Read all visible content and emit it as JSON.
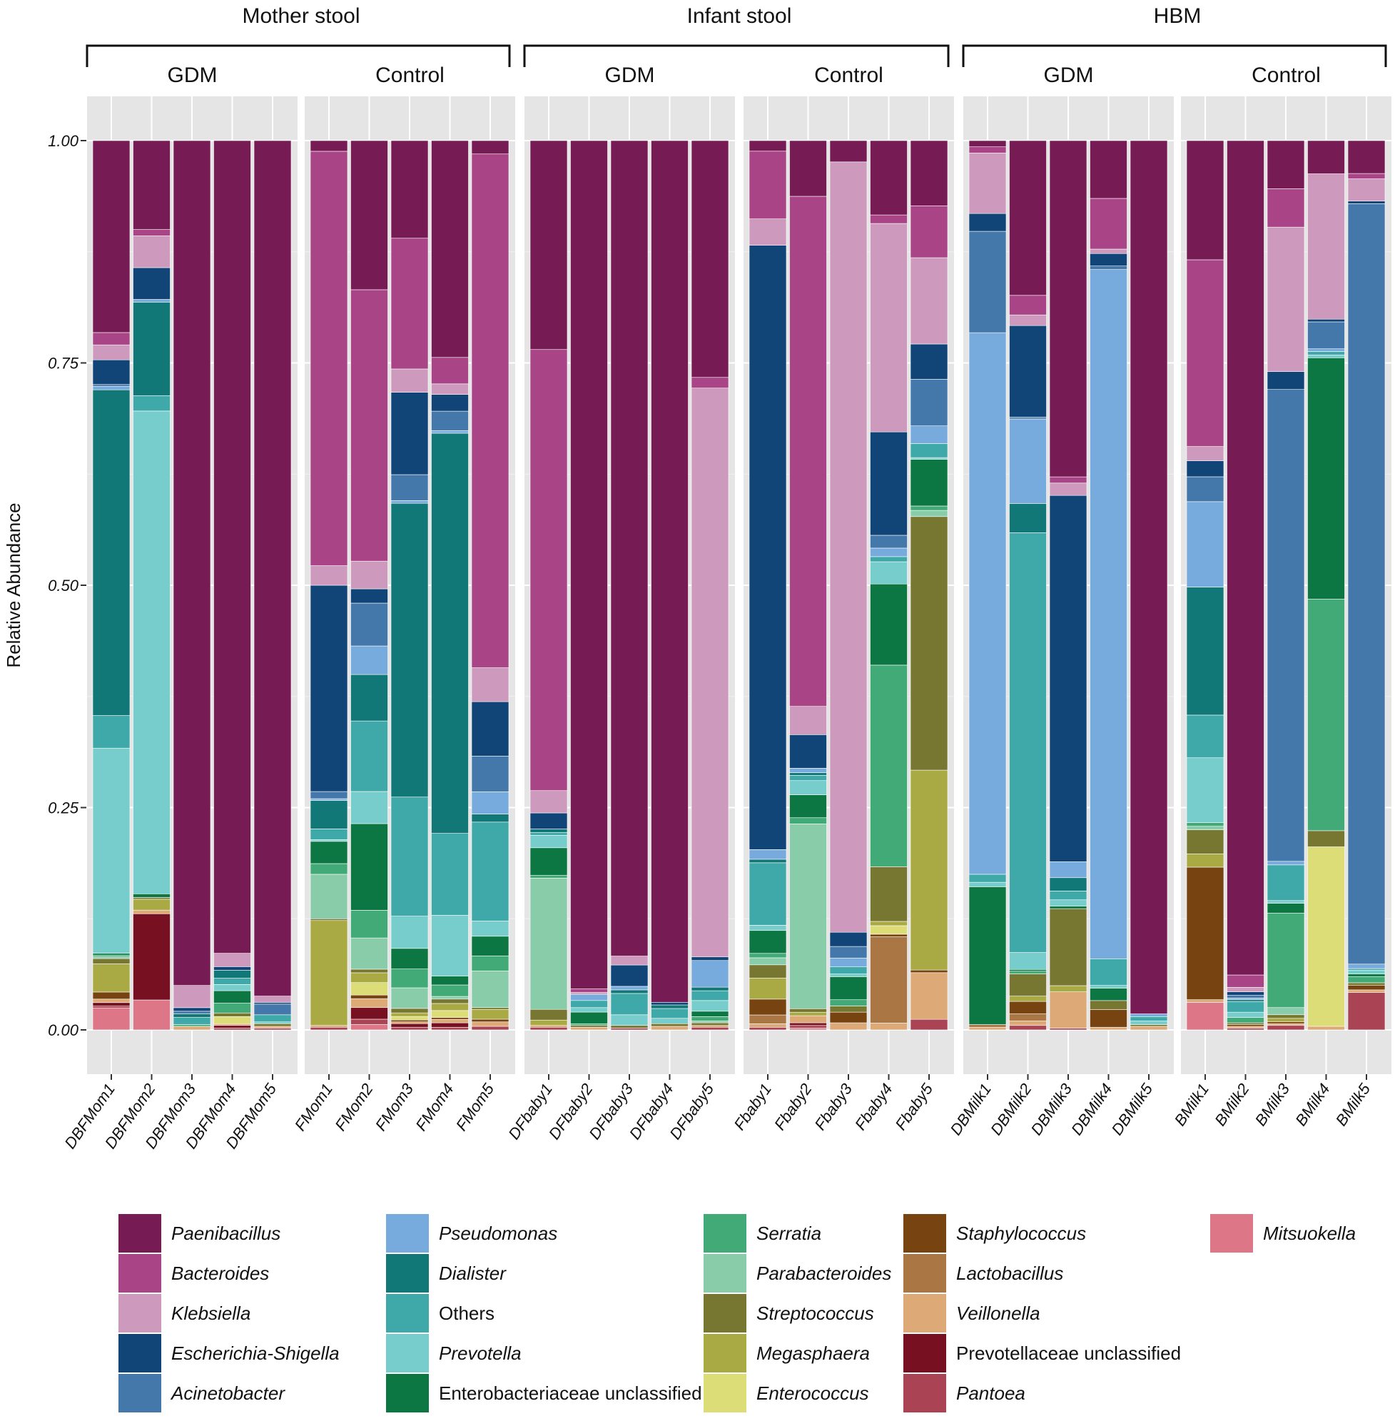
{
  "chart_data": {
    "type": "bar",
    "stacked": true,
    "ylabel": "Relative Abundance",
    "ylim": [
      0,
      1
    ],
    "yticks": [
      "0.00",
      "0.25",
      "0.50",
      "0.75",
      "1.00"
    ],
    "ytick_values": [
      0,
      0.25,
      0.5,
      0.75,
      1.0
    ],
    "grid": true,
    "legend_position": "bottom",
    "groups": [
      {
        "title": "Mother stool",
        "subgroups": [
          {
            "title": "GDM",
            "samples": [
              "DBFMom1",
              "DBFMom2",
              "DBFMom3",
              "DBFMom4",
              "DBFMom5"
            ]
          },
          {
            "title": "Control",
            "samples": [
              "FMom1",
              "FMom2",
              "FMom3",
              "FMom4",
              "FMom5"
            ]
          }
        ]
      },
      {
        "title": "Infant stool",
        "subgroups": [
          {
            "title": "GDM",
            "samples": [
              "DFbaby1",
              "DFbaby2",
              "DFbaby3",
              "DFbaby4",
              "DFbaby5"
            ]
          },
          {
            "title": "Control",
            "samples": [
              "Fbaby1",
              "Fbaby2",
              "Fbaby3",
              "Fbaby4",
              "Fbaby5"
            ]
          }
        ]
      },
      {
        "title": "HBM",
        "subgroups": [
          {
            "title": "GDM",
            "samples": [
              "DBMilk1",
              "DBMilk2",
              "DBMilk3",
              "DBMilk4",
              "DBMilk5"
            ]
          },
          {
            "title": "Control",
            "samples": [
              "BMilk1",
              "BMilk2",
              "BMilk3",
              "BMilk4",
              "BMilk5"
            ]
          }
        ]
      }
    ],
    "taxa": [
      {
        "name": "Paenibacillus",
        "color": "#771b55",
        "italic": true
      },
      {
        "name": "Bacteroides",
        "color": "#a94487",
        "italic": true
      },
      {
        "name": "Klebsiella",
        "color": "#cd99bd",
        "italic": true
      },
      {
        "name": "Escherichia-Shigella",
        "color": "#114477",
        "italic": true
      },
      {
        "name": "Acinetobacter",
        "color": "#4477aa",
        "italic": true
      },
      {
        "name": "Pseudomonas",
        "color": "#77aadd",
        "italic": true
      },
      {
        "name": "Dialister",
        "color": "#117777",
        "italic": true
      },
      {
        "name": "Others",
        "color": "#3fa9a9",
        "italic": false
      },
      {
        "name": "Prevotella",
        "color": "#77cccc",
        "italic": true
      },
      {
        "name": "Enterobacteriaceae unclassified",
        "color": "#0d7744",
        "italic": false
      },
      {
        "name": "Serratia",
        "color": "#41aa77",
        "italic": true
      },
      {
        "name": "Parabacteroides",
        "color": "#88ccaa",
        "italic": true
      },
      {
        "name": "Streptococcus",
        "color": "#777732",
        "italic": true
      },
      {
        "name": "Megasphaera",
        "color": "#aaaa44",
        "italic": true
      },
      {
        "name": "Enterococcus",
        "color": "#dddd77",
        "italic": true
      },
      {
        "name": "Staphylococcus",
        "color": "#774411",
        "italic": true
      },
      {
        "name": "Lactobacillus",
        "color": "#aa7744",
        "italic": true
      },
      {
        "name": "Veillonella",
        "color": "#ddaa77",
        "italic": true
      },
      {
        "name": "Prevotellaceae unclassified",
        "color": "#771122",
        "italic": false
      },
      {
        "name": "Pantoea",
        "color": "#aa4455",
        "italic": true
      },
      {
        "name": "Mitsuokella",
        "color": "#dd7788",
        "italic": true
      }
    ],
    "series_note": "Each sample vector lists abundances in taxa order (Paenibacillus ... Mitsuokella); stacked top-to-bottom in that order.",
    "samples": {
      "DBFMom1": [
        0.218,
        0.014,
        0.017,
        0.028,
        0.002,
        0.004,
        0.37,
        0.037,
        0.233,
        0.002,
        0.002,
        0.002,
        0.006,
        0.032,
        0.0,
        0.008,
        0.0,
        0.004,
        0.004,
        0.002,
        0.025
      ],
      "DBFMom2": [
        0.098,
        0.007,
        0.035,
        0.035,
        0.0,
        0.003,
        0.103,
        0.017,
        0.532,
        0.004,
        0.0,
        0.0,
        0.002,
        0.012,
        0.0,
        0.0,
        0.0,
        0.004,
        0.095,
        0.0,
        0.033
      ],
      "DBFMom3": [
        0.95,
        0.0,
        0.025,
        0.004,
        0.003,
        0.0,
        0.004,
        0.008,
        0.0,
        0.0,
        0.002,
        0.0,
        0.0,
        0.0,
        0.0,
        0.0,
        0.0,
        0.004,
        0.0,
        0.0,
        0.0
      ],
      "DBFMom4": [
        0.912,
        0.0,
        0.015,
        0.004,
        0.0,
        0.0,
        0.009,
        0.007,
        0.007,
        0.014,
        0.011,
        0.0,
        0.004,
        0.0,
        0.008,
        0.0,
        0.0,
        0.002,
        0.003,
        0.002,
        0.0
      ],
      "DBFMom5": [
        0.962,
        0.0,
        0.007,
        0.002,
        0.012,
        0.0,
        0.0,
        0.008,
        0.002,
        0.0,
        0.0,
        0.0,
        0.003,
        0.0,
        0.0,
        0.0,
        0.0,
        0.002,
        0.0,
        0.002,
        0.0
      ],
      "FMom1": [
        0.012,
        0.466,
        0.022,
        0.232,
        0.008,
        0.002,
        0.032,
        0.012,
        0.002,
        0.025,
        0.012,
        0.05,
        0.002,
        0.118,
        0.0,
        0.0,
        0.0,
        0.002,
        0.0,
        0.003,
        0.0
      ],
      "FMom2": [
        0.167,
        0.304,
        0.031,
        0.016,
        0.048,
        0.032,
        0.052,
        0.079,
        0.036,
        0.097,
        0.031,
        0.035,
        0.004,
        0.011,
        0.014,
        0.004,
        0.0,
        0.01,
        0.013,
        0.006,
        0.006
      ],
      "FMom3": [
        0.109,
        0.146,
        0.026,
        0.092,
        0.029,
        0.003,
        0.328,
        0.133,
        0.036,
        0.023,
        0.021,
        0.023,
        0.005,
        0.004,
        0.004,
        0.002,
        0.0,
        0.002,
        0.004,
        0.003,
        0.0
      ],
      "FMom4": [
        0.246,
        0.03,
        0.012,
        0.019,
        0.022,
        0.003,
        0.454,
        0.093,
        0.069,
        0.01,
        0.013,
        0.003,
        0.005,
        0.008,
        0.008,
        0.002,
        0.0,
        0.004,
        0.005,
        0.003,
        0.0
      ],
      "FMom5": [
        0.015,
        0.576,
        0.038,
        0.061,
        0.04,
        0.025,
        0.009,
        0.111,
        0.017,
        0.022,
        0.017,
        0.041,
        0.002,
        0.011,
        0.0,
        0.003,
        0.0,
        0.005,
        0.0,
        0.004,
        0.0
      ],
      "DFbaby1": [
        0.234,
        0.494,
        0.025,
        0.018,
        0.0,
        0.0,
        0.004,
        0.003,
        0.014,
        0.031,
        0.003,
        0.147,
        0.012,
        0.006,
        0.0,
        0.0,
        0.0,
        0.002,
        0.0,
        0.003,
        0.0
      ],
      "DFbaby2": [
        0.952,
        0.004,
        0.002,
        0.0,
        0.0,
        0.007,
        0.0,
        0.008,
        0.005,
        0.013,
        0.002,
        0.0,
        0.002,
        0.0,
        0.0,
        0.0,
        0.0,
        0.003,
        0.0,
        0.0,
        0.0
      ],
      "DFbaby3": [
        0.917,
        0.0,
        0.01,
        0.024,
        0.0,
        0.004,
        0.004,
        0.024,
        0.012,
        0.0,
        0.0,
        0.0,
        0.003,
        0.0,
        0.0,
        0.0,
        0.0,
        0.0,
        0.0,
        0.002,
        0.0
      ],
      "DFbaby4": [
        0.967,
        0.0,
        0.0,
        0.003,
        0.0,
        0.0,
        0.004,
        0.011,
        0.006,
        0.0,
        0.0,
        0.0,
        0.003,
        0.0,
        0.0,
        0.0,
        0.0,
        0.004,
        0.0,
        0.0,
        0.0
      ],
      "DFbaby5": [
        0.266,
        0.012,
        0.639,
        0.004,
        0.0,
        0.03,
        0.004,
        0.011,
        0.012,
        0.006,
        0.005,
        0.002,
        0.003,
        0.0,
        0.0,
        0.0,
        0.0,
        0.002,
        0.0,
        0.003,
        0.0
      ],
      "Fbaby1": [
        0.012,
        0.077,
        0.03,
        0.687,
        0.0,
        0.011,
        0.004,
        0.071,
        0.006,
        0.026,
        0.005,
        0.008,
        0.015,
        0.024,
        0.0,
        0.018,
        0.01,
        0.004,
        0.0,
        0.003,
        0.0
      ],
      "Fbaby2": [
        0.063,
        0.577,
        0.032,
        0.038,
        0.0,
        0.005,
        0.003,
        0.006,
        0.016,
        0.026,
        0.007,
        0.209,
        0.004,
        0.004,
        0.0,
        0.0,
        0.0,
        0.008,
        0.003,
        0.003,
        0.002
      ],
      "Fbaby3": [
        0.024,
        0.0,
        0.868,
        0.016,
        0.013,
        0.01,
        0.0,
        0.008,
        0.003,
        0.026,
        0.007,
        0.0,
        0.007,
        0.0,
        0.0,
        0.012,
        0.0,
        0.008,
        0.0,
        0.0,
        0.0
      ],
      "Fbaby4": [
        0.087,
        0.01,
        0.244,
        0.121,
        0.015,
        0.01,
        0.0,
        0.006,
        0.026,
        0.095,
        0.236,
        0.0,
        0.064,
        0.005,
        0.01,
        0.003,
        0.101,
        0.008,
        0.0,
        0.0,
        0.0
      ],
      "Fbaby5": [
        0.074,
        0.059,
        0.098,
        0.04,
        0.053,
        0.02,
        0.0,
        0.016,
        0.002,
        0.053,
        0.005,
        0.007,
        0.288,
        0.227,
        0.0,
        0.003,
        0.0,
        0.053,
        0.0,
        0.012,
        0.0
      ],
      "DBMilk1": [
        0.007,
        0.007,
        0.068,
        0.02,
        0.114,
        0.609,
        0.0,
        0.009,
        0.005,
        0.155,
        0.0,
        0.0,
        0.0,
        0.0,
        0.0,
        0.0,
        0.003,
        0.003,
        0.0,
        0.0,
        0.0
      ],
      "DBMilk2": [
        0.174,
        0.022,
        0.012,
        0.103,
        0.002,
        0.095,
        0.033,
        0.472,
        0.019,
        0.002,
        0.003,
        0.0,
        0.025,
        0.006,
        0.0,
        0.014,
        0.008,
        0.005,
        0.0,
        0.005,
        0.0
      ],
      "DBMilk3": [
        0.38,
        0.007,
        0.014,
        0.414,
        0.0,
        0.018,
        0.015,
        0.01,
        0.007,
        0.003,
        0.0,
        0.0,
        0.087,
        0.007,
        0.0,
        0.0,
        0.0,
        0.041,
        0.0,
        0.002,
        0.0
      ],
      "DBMilk4": [
        0.065,
        0.057,
        0.005,
        0.014,
        0.004,
        0.775,
        0.0,
        0.03,
        0.003,
        0.014,
        0.0,
        0.0,
        0.01,
        0.0,
        0.0,
        0.02,
        0.0,
        0.003,
        0.0,
        0.0,
        0.0
      ],
      "DBMilk5": [
        0.982,
        0.0,
        0.0,
        0.0,
        0.0,
        0.003,
        0.0,
        0.005,
        0.004,
        0.0,
        0.0,
        0.0,
        0.002,
        0.0,
        0.0,
        0.0,
        0.0,
        0.004,
        0.0,
        0.0,
        0.0
      ],
      "BMilk1": [
        0.134,
        0.21,
        0.016,
        0.018,
        0.028,
        0.096,
        0.144,
        0.048,
        0.073,
        0.0,
        0.004,
        0.004,
        0.027,
        0.015,
        0.0,
        0.149,
        0.0,
        0.003,
        0.0,
        0.0,
        0.031
      ],
      "BMilk2": [
        0.942,
        0.014,
        0.005,
        0.004,
        0.003,
        0.002,
        0.002,
        0.012,
        0.006,
        0.0,
        0.006,
        0.0,
        0.002,
        0.0,
        0.0,
        0.002,
        0.0,
        0.002,
        0.0,
        0.002,
        0.0
      ],
      "BMilk3": [
        0.054,
        0.043,
        0.162,
        0.02,
        0.529,
        0.004,
        0.0,
        0.04,
        0.003,
        0.011,
        0.106,
        0.008,
        0.004,
        0.004,
        0.0,
        0.002,
        0.0,
        0.002,
        0.0,
        0.005,
        0.0
      ],
      "BMilk4": [
        0.037,
        0.0,
        0.162,
        0.003,
        0.03,
        0.003,
        0.0,
        0.004,
        0.003,
        0.269,
        0.258,
        0.0,
        0.018,
        0.0,
        0.2,
        0.0,
        0.0,
        0.004,
        0.0,
        0.0,
        0.0
      ],
      "BMilk5": [
        0.037,
        0.006,
        0.025,
        0.003,
        0.855,
        0.005,
        0.0,
        0.002,
        0.004,
        0.003,
        0.007,
        0.0,
        0.003,
        0.0,
        0.0,
        0.005,
        0.0,
        0.003,
        0.0,
        0.042,
        0.0
      ]
    }
  }
}
